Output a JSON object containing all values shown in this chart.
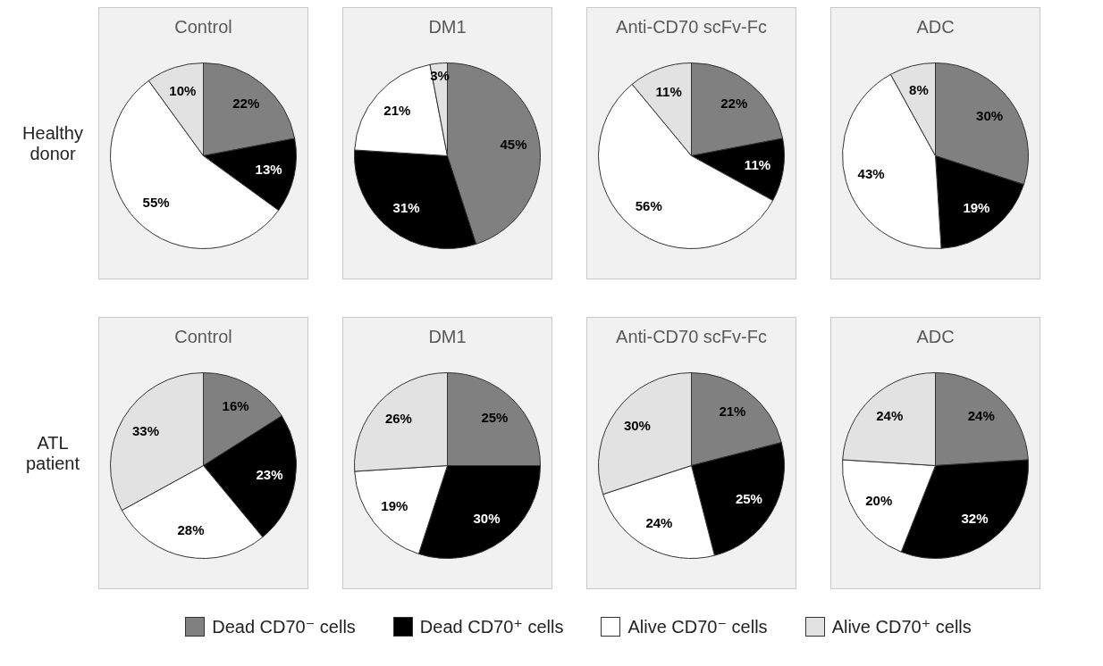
{
  "chart_data": [
    {
      "type": "pie",
      "title": "Control",
      "annotations": [
        "Healthy donor"
      ],
      "legend": "bottom",
      "categories": [
        "Dead CD70⁻ cells",
        "Dead CD70⁺ cells",
        "Alive CD70⁻ cells",
        "Alive CD70⁺ cells"
      ],
      "colors": [
        "#808080",
        "#000000",
        "#ffffff",
        "#e2e2e2"
      ],
      "values": [
        22,
        13,
        55,
        10
      ],
      "value_labels": [
        "22%",
        "13%",
        "55%",
        "10%"
      ]
    },
    {
      "type": "pie",
      "title": "DM1",
      "colors": [
        "#808080",
        "#000000",
        "#ffffff",
        "#e2e2e2"
      ],
      "values": [
        45,
        31,
        21,
        3
      ],
      "value_labels": [
        "45%",
        "31%",
        "21%",
        "3%"
      ]
    },
    {
      "type": "pie",
      "title": "Anti-CD70 scFv-Fc",
      "colors": [
        "#808080",
        "#000000",
        "#ffffff",
        "#e2e2e2"
      ],
      "values": [
        22,
        11,
        56,
        11
      ],
      "value_labels": [
        "22%",
        "11%",
        "56%",
        "11%"
      ]
    },
    {
      "type": "pie",
      "title": "ADC",
      "colors": [
        "#808080",
        "#000000",
        "#ffffff",
        "#e2e2e2"
      ],
      "values": [
        30,
        19,
        43,
        8
      ],
      "value_labels": [
        "30%",
        "19%",
        "43%",
        "8%"
      ]
    },
    {
      "type": "pie",
      "title": "Control",
      "annotations": [
        "ATL patient"
      ],
      "colors": [
        "#808080",
        "#000000",
        "#ffffff",
        "#e2e2e2"
      ],
      "values": [
        16,
        23,
        28,
        33
      ],
      "value_labels": [
        "16%",
        "23%",
        "28%",
        "33%"
      ]
    },
    {
      "type": "pie",
      "title": "DM1",
      "colors": [
        "#808080",
        "#000000",
        "#ffffff",
        "#e2e2e2"
      ],
      "values": [
        25,
        30,
        19,
        26
      ],
      "value_labels": [
        "25%",
        "30%",
        "19%",
        "26%"
      ]
    },
    {
      "type": "pie",
      "title": "Anti-CD70 scFv-Fc",
      "colors": [
        "#808080",
        "#000000",
        "#ffffff",
        "#e2e2e2"
      ],
      "values": [
        21,
        25,
        24,
        30
      ],
      "value_labels": [
        "21%",
        "25%",
        "24%",
        "30%"
      ]
    },
    {
      "type": "pie",
      "title": "ADC",
      "colors": [
        "#808080",
        "#000000",
        "#ffffff",
        "#e2e2e2"
      ],
      "values": [
        24,
        32,
        20,
        24
      ],
      "value_labels": [
        "24%",
        "32%",
        "20%",
        "24%"
      ]
    }
  ]
}
